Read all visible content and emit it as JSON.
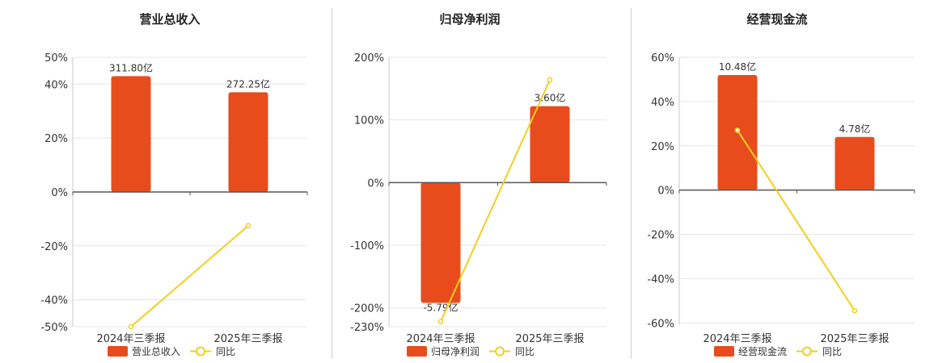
{
  "colors": {
    "bar": "#e84c1c",
    "line": "#f2cf1f",
    "grid": "#e6e6e6",
    "axis": "#555555"
  },
  "chart_data": [
    {
      "type": "bar+line",
      "title": "营业总收入",
      "categories": [
        "2024年三季报",
        "2025年三季报"
      ],
      "ylim": [
        -50,
        50
      ],
      "y_ticks": [
        "50%",
        "40%",
        "20%",
        "0%",
        "-20%",
        "-40%",
        "-50%"
      ],
      "series": [
        {
          "name": "营业总收入",
          "kind": "bar",
          "values": [
            43,
            37
          ],
          "labels": [
            "311.80亿",
            "272.25亿"
          ]
        },
        {
          "name": "同比",
          "kind": "line",
          "values": [
            -50,
            -12.5
          ]
        }
      ]
    },
    {
      "type": "bar+line",
      "title": "归母净利润",
      "categories": [
        "2024年三季报",
        "2025年三季报"
      ],
      "ylim": [
        -230,
        200
      ],
      "y_ticks": [
        "200%",
        "100%",
        "0%",
        "-100%",
        "-200%",
        "-230%"
      ],
      "series": [
        {
          "name": "归母净利润",
          "kind": "bar",
          "values": [
            -192,
            122
          ],
          "labels": [
            "-5.79亿",
            "3.60亿"
          ]
        },
        {
          "name": "同比",
          "kind": "line",
          "values": [
            -222,
            164
          ]
        }
      ]
    },
    {
      "type": "bar+line",
      "title": "经营现金流",
      "categories": [
        "2024年三季报",
        "2025年三季报"
      ],
      "ylim": [
        -61,
        60
      ],
      "y_ticks": [
        "60%",
        "40%",
        "20%",
        "0%",
        "-20%",
        "-40%",
        "-60%"
      ],
      "series": [
        {
          "name": "经营现金流",
          "kind": "bar",
          "values": [
            52,
            24
          ],
          "labels": [
            "10.48亿",
            "4.78亿"
          ]
        },
        {
          "name": "同比",
          "kind": "line",
          "values": [
            27,
            -54.5
          ]
        }
      ]
    }
  ]
}
